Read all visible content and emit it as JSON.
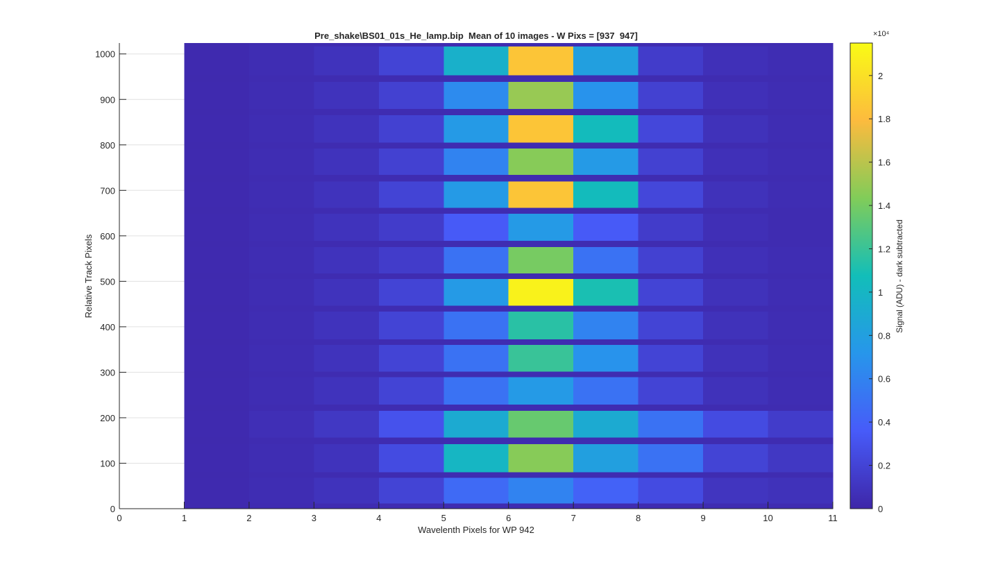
{
  "chart_data": {
    "type": "heatmap",
    "title": "Pre_shake\\BS01_01s_He_lamp.bip  Mean of 10 images - W Pixs = [937  947]",
    "x_label": "Wavelenth Pixels for WP 942",
    "y_label": "Relative Track Pixels",
    "colorbar_label": "Signal (ADU) - dark subtracted",
    "colorbar_exponent": "×10⁴",
    "x_edges": [
      1,
      2,
      3,
      4,
      5,
      6,
      7,
      8,
      9,
      10,
      11
    ],
    "y_edges": [
      0,
      12,
      69,
      81,
      143,
      157,
      216,
      230,
      290,
      302,
      361,
      373,
      434,
      447,
      506,
      518,
      576,
      590,
      649,
      662,
      720,
      735,
      793,
      806,
      866,
      880,
      939,
      954,
      1017,
      1024
    ],
    "z": [
      [
        250,
        400,
        400,
        400,
        400,
        400,
        400,
        400,
        400,
        400
      ],
      [
        300,
        500,
        900,
        2000,
        4500,
        6000,
        4000,
        2500,
        1000,
        800
      ],
      [
        250,
        400,
        400,
        400,
        400,
        400,
        400,
        400,
        400,
        400
      ],
      [
        300,
        500,
        900,
        2500,
        10000,
        14500,
        8000,
        5000,
        2000,
        1200
      ],
      [
        250,
        400,
        400,
        400,
        400,
        400,
        400,
        400,
        400,
        400
      ],
      [
        300,
        600,
        1200,
        3000,
        9000,
        13500,
        9000,
        5000,
        2500,
        1500
      ],
      [
        250,
        400,
        400,
        400,
        400,
        400,
        400,
        400,
        400,
        400
      ],
      [
        300,
        500,
        900,
        2000,
        5000,
        7500,
        5000,
        2000,
        800,
        500
      ],
      [
        250,
        400,
        400,
        400,
        400,
        400,
        400,
        400,
        400,
        400
      ],
      [
        300,
        500,
        900,
        2000,
        5000,
        12000,
        7000,
        2000,
        800,
        500
      ],
      [
        250,
        400,
        400,
        400,
        400,
        400,
        400,
        400,
        400,
        400
      ],
      [
        300,
        500,
        900,
        2000,
        5000,
        11500,
        6000,
        2000,
        800,
        500
      ],
      [
        250,
        400,
        400,
        400,
        400,
        400,
        400,
        400,
        400,
        400
      ],
      [
        300,
        500,
        900,
        2000,
        7500,
        21000,
        11000,
        2000,
        800,
        500
      ],
      [
        250,
        400,
        400,
        400,
        400,
        400,
        400,
        400,
        400,
        400
      ],
      [
        300,
        500,
        900,
        1500,
        5000,
        14000,
        5000,
        1800,
        700,
        500
      ],
      [
        250,
        400,
        400,
        400,
        400,
        400,
        400,
        400,
        400,
        400
      ],
      [
        300,
        500,
        900,
        1500,
        3500,
        7500,
        3500,
        1500,
        600,
        400
      ],
      [
        250,
        400,
        400,
        400,
        400,
        400,
        400,
        400,
        400,
        400
      ],
      [
        300,
        500,
        900,
        2000,
        7500,
        18500,
        10500,
        2200,
        800,
        500
      ],
      [
        250,
        400,
        400,
        400,
        400,
        400,
        400,
        400,
        400,
        400
      ],
      [
        300,
        500,
        900,
        1800,
        6000,
        14500,
        7500,
        1800,
        700,
        500
      ],
      [
        250,
        400,
        400,
        400,
        400,
        400,
        400,
        400,
        400,
        400
      ],
      [
        300,
        500,
        900,
        1800,
        7500,
        18500,
        10500,
        2200,
        800,
        500
      ],
      [
        250,
        400,
        400,
        400,
        400,
        400,
        400,
        400,
        400,
        400
      ],
      [
        300,
        500,
        900,
        1800,
        6500,
        15000,
        7000,
        1800,
        700,
        500
      ],
      [
        250,
        400,
        400,
        400,
        400,
        400,
        400,
        400,
        400,
        400
      ],
      [
        300,
        500,
        900,
        2000,
        9500,
        18500,
        8000,
        1500,
        700,
        500
      ],
      [
        250,
        400,
        400,
        400,
        400,
        400,
        400,
        400,
        400,
        400
      ]
    ],
    "xlim": [
      0,
      11
    ],
    "xticks": [
      0,
      1,
      2,
      3,
      4,
      5,
      6,
      7,
      8,
      9,
      10,
      11
    ],
    "ylim": [
      0,
      1024
    ],
    "yticks": [
      0,
      100,
      200,
      300,
      400,
      500,
      600,
      700,
      800,
      900,
      1000
    ],
    "clim": [
      0,
      21500
    ],
    "cticks": [
      0,
      {
        "value": 2000,
        "label": "0.2"
      },
      {
        "value": 4000,
        "label": "0.4"
      },
      {
        "value": 6000,
        "label": "0.6"
      },
      {
        "value": 8000,
        "label": "0.8"
      },
      {
        "value": 10000,
        "label": "1"
      },
      {
        "value": 12000,
        "label": "1.2"
      },
      {
        "value": 14000,
        "label": "1.4"
      },
      {
        "value": 16000,
        "label": "1.6"
      },
      {
        "value": 18000,
        "label": "1.8"
      },
      {
        "value": 20000,
        "label": "2"
      }
    ],
    "colormap": "parula",
    "grid": true
  }
}
